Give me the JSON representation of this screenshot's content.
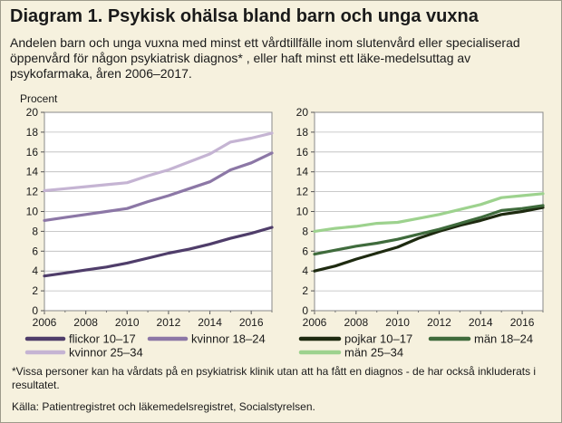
{
  "title": "Diagram 1. Psykisk ohälsa bland barn och unga vuxna",
  "subtitle": "Andelen barn och unga vuxna med minst ett vårdtillfälle inom slutenvård eller specialiserad öppenvård för någon psykiatrisk diagnos* , eller haft minst ett läke-medelsuttag av psykofarmaka, åren 2006–2017.",
  "footnote": "*Vissa personer kan ha vårdats på en psykiatrisk klinik utan att ha fått en diagnos - de har också inkluderats i resultatet.",
  "source": "Källa: Patientregistret och läkemedelsregistret, Socialstyrelsen.",
  "chart_data": [
    {
      "type": "line",
      "ylabel": "Procent",
      "ylim": [
        0,
        20
      ],
      "yticks": [
        "0",
        "2",
        "4",
        "6",
        "8",
        "10",
        "12",
        "14",
        "16",
        "18",
        "20"
      ],
      "xlim": [
        2006,
        2017
      ],
      "xticks": [
        "2006",
        "2008",
        "2010",
        "2012",
        "2014",
        "2016"
      ],
      "grid": true,
      "legend": "bottom",
      "x": [
        2006,
        2007,
        2008,
        2009,
        2010,
        2011,
        2012,
        2013,
        2014,
        2015,
        2016,
        2017
      ],
      "series": [
        {
          "name": "flickor 10–17",
          "color": "#4f3d6a",
          "values": [
            3.5,
            3.8,
            4.1,
            4.4,
            4.8,
            5.3,
            5.8,
            6.2,
            6.7,
            7.3,
            7.8,
            8.4
          ]
        },
        {
          "name": "kvinnor 18–24",
          "color": "#8c77a6",
          "values": [
            9.1,
            9.4,
            9.7,
            10.0,
            10.3,
            11.0,
            11.6,
            12.3,
            13.0,
            14.2,
            14.9,
            15.9
          ]
        },
        {
          "name": "kvinnor 25–34",
          "color": "#c5b4d3",
          "values": [
            12.1,
            12.3,
            12.5,
            12.7,
            12.9,
            13.6,
            14.2,
            15.0,
            15.8,
            17.0,
            17.4,
            17.9
          ]
        }
      ]
    },
    {
      "type": "line",
      "ylim": [
        0,
        20
      ],
      "yticks": [
        "0",
        "2",
        "4",
        "6",
        "8",
        "10",
        "12",
        "14",
        "16",
        "18",
        "20"
      ],
      "xlim": [
        2006,
        2017
      ],
      "xticks": [
        "2006",
        "2008",
        "2010",
        "2012",
        "2014",
        "2016"
      ],
      "grid": true,
      "legend": "bottom",
      "x": [
        2006,
        2007,
        2008,
        2009,
        2010,
        2011,
        2012,
        2013,
        2014,
        2015,
        2016,
        2017
      ],
      "series": [
        {
          "name": "pojkar 10–17",
          "color": "#1e2a10",
          "values": [
            4.0,
            4.5,
            5.2,
            5.8,
            6.4,
            7.3,
            8.0,
            8.6,
            9.1,
            9.7,
            10.0,
            10.4
          ]
        },
        {
          "name": "män 18–24",
          "color": "#3f6b3c",
          "values": [
            5.7,
            6.1,
            6.5,
            6.8,
            7.2,
            7.7,
            8.2,
            8.8,
            9.4,
            10.1,
            10.3,
            10.6
          ]
        },
        {
          "name": "män 25–34",
          "color": "#9dd28e",
          "values": [
            8.0,
            8.3,
            8.5,
            8.8,
            8.9,
            9.3,
            9.7,
            10.2,
            10.7,
            11.4,
            11.6,
            11.8
          ]
        }
      ]
    }
  ]
}
